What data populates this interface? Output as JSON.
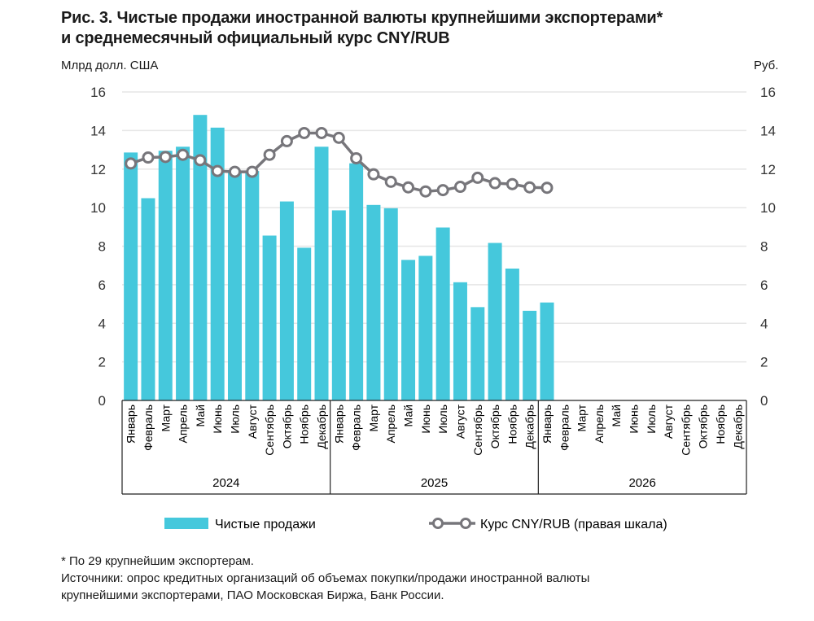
{
  "chart_data": {
    "type": "bar+line",
    "title_line1": "Рис. 3. Чистые продажи иностранной валюты крупнейшими экспортерами*",
    "title_line2": "и среднемесячный официальный курс CNY/RUB",
    "ylabel_left": "Млрд долл. США",
    "ylabel_right": "Руб.",
    "ylim_left": [
      0,
      16
    ],
    "ylim_right": [
      0,
      16
    ],
    "yticks": [
      0,
      2,
      4,
      6,
      8,
      10,
      12,
      14,
      16
    ],
    "grid": true,
    "months": [
      "Январь",
      "Февраль",
      "Март",
      "Апрель",
      "Май",
      "Июнь",
      "Июль",
      "Август",
      "Сентябрь",
      "Октябрь",
      "Ноябрь",
      "Декабрь"
    ],
    "years": [
      "2024",
      "2025",
      "2026"
    ],
    "series": [
      {
        "name": "Чистые продажи",
        "type": "bar",
        "axis": "left",
        "color": "#45C8DC",
        "values": [
          12.86,
          10.49,
          12.95,
          13.16,
          14.81,
          14.15,
          11.8,
          11.9,
          8.55,
          10.32,
          7.92,
          13.16,
          9.86,
          12.3,
          10.14,
          9.97,
          7.29,
          7.5,
          8.97,
          6.13,
          4.84,
          8.17,
          6.84,
          4.65,
          5.08
        ]
      },
      {
        "name": "Курс CNY/RUB (правая шкала)",
        "type": "line",
        "axis": "right",
        "color": "#77767B",
        "values": [
          12.29,
          12.6,
          12.63,
          12.74,
          12.46,
          11.9,
          11.86,
          11.86,
          12.74,
          13.45,
          13.87,
          13.87,
          13.62,
          12.56,
          11.73,
          11.34,
          11.05,
          10.84,
          10.91,
          11.08,
          11.55,
          11.27,
          11.22,
          11.05,
          11.03
        ]
      }
    ],
    "legend_position": "bottom"
  },
  "footnotes": [
    "* По 29 крупнейшим экспортерам.",
    "Источники: опрос кредитных организаций об объемах покупки/продажи иностранной валюты",
    "крупнейшими экспортерами, ПАО Московская Биржа, Банк России."
  ]
}
